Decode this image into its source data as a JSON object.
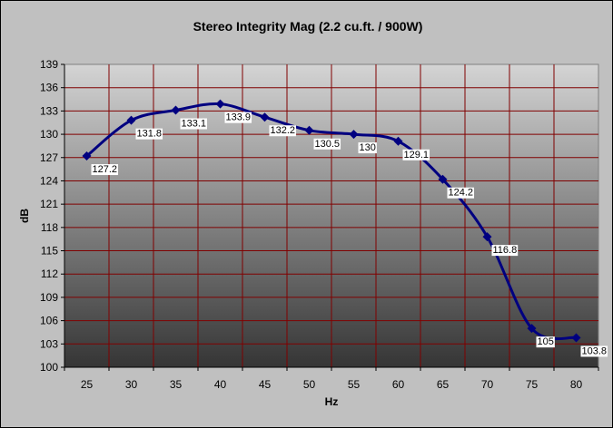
{
  "chart_data": {
    "type": "line",
    "title": "Stereo Integrity Mag (2.2 cu.ft. / 900W)",
    "xlabel": "Hz",
    "ylabel": "dB",
    "x": [
      25,
      30,
      35,
      40,
      45,
      50,
      55,
      60,
      65,
      70,
      75,
      80
    ],
    "x_tick_labels": [
      "25",
      "30",
      "35",
      "40",
      "45",
      "50",
      "55",
      "60",
      "65",
      "70",
      "75",
      "80"
    ],
    "ylim": [
      100,
      139
    ],
    "y_ticks": [
      100,
      103,
      106,
      109,
      112,
      115,
      118,
      121,
      124,
      127,
      130,
      133,
      136,
      139
    ],
    "y_tick_labels": [
      "100",
      "103",
      "106",
      "109",
      "112",
      "115",
      "118",
      "121",
      "124",
      "127",
      "130",
      "133",
      "136",
      "139"
    ],
    "grid": true,
    "legend": "none",
    "series": [
      {
        "values": [
          127.2,
          131.8,
          133.1,
          133.9,
          132.2,
          130.5,
          130,
          129.1,
          124.2,
          116.8,
          105,
          103.8
        ],
        "labels": [
          "127.2",
          "131.8",
          "133.1",
          "133.9",
          "132.2",
          "130.5",
          "130",
          "129.1",
          "124.2",
          "116.8",
          "105",
          "103.8"
        ],
        "color": "#000080"
      }
    ],
    "colors": {
      "gridline": "#800000",
      "plot_gradient_top": "#d4d4d4",
      "plot_gradient_bottom": "#353535",
      "chart_background": "#c0c0c0",
      "label_background": "#ffffff"
    }
  }
}
